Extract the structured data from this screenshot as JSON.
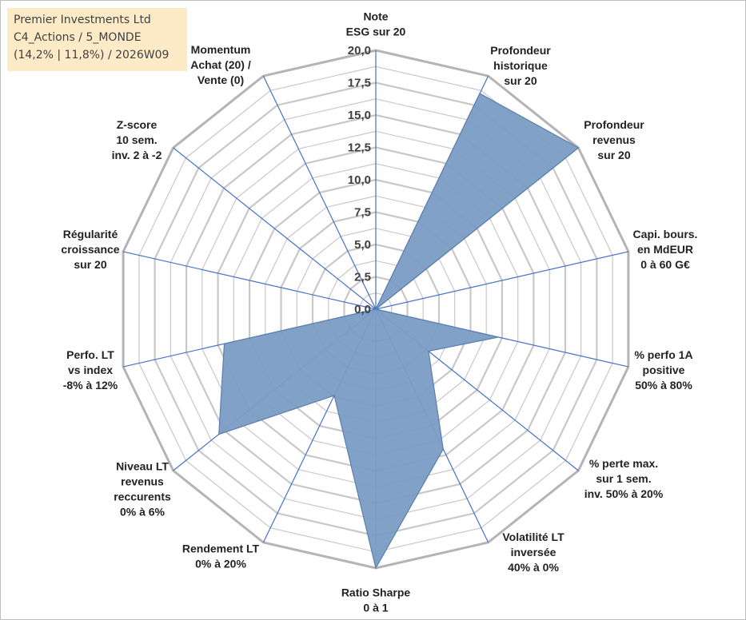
{
  "info": {
    "line1": "Premier Investments Ltd",
    "line2": "C4_Actions / 5_MONDE",
    "line3": "(14,2% | 11,8%) / 2026W09"
  },
  "colors": {
    "fill": "#7b9cc4",
    "stroke": "#5b7fae",
    "spoke": "#4472c4",
    "ring": "#c8c8c8",
    "outer_ring": "#b4b4b4"
  },
  "chart_data": {
    "type": "radar",
    "ylim": [
      0,
      20
    ],
    "tick_labels": [
      "0,0",
      "2,5",
      "5,0",
      "7,5",
      "10,0",
      "12,5",
      "15,0",
      "17,5",
      "20,0"
    ],
    "categories": [
      [
        "Note",
        "ESG sur 20"
      ],
      [
        "Profondeur",
        "historique",
        "sur 20"
      ],
      [
        "Profondeur",
        "revenus",
        "sur 20"
      ],
      [
        "Capi. bours.",
        "en MdEUR",
        "0 à 60 G€"
      ],
      [
        "% perfo 1A",
        "positive",
        "50% à 80%"
      ],
      [
        "% perte max.",
        "sur 1 sem.",
        "inv. 50% à 20%"
      ],
      [
        "Volatilité LT",
        "inversée",
        "40% à 0%"
      ],
      [
        "Ratio Sharpe",
        "0 à 1"
      ],
      [
        "Rendement LT",
        "0% à 20%"
      ],
      [
        "Niveau LT",
        "revenus",
        "reccurents",
        "0% à 6%"
      ],
      [
        "Perfo. LT",
        "vs index",
        "-8% à 12%"
      ],
      [
        "Régularité",
        "croissance",
        "sur 20"
      ],
      [
        "Z-score",
        "10 sem.",
        "inv. 2 à -2"
      ],
      [
        "Momentum",
        "Achat (20) /",
        "Vente (0)"
      ]
    ],
    "values": [
      0,
      18.5,
      20,
      0,
      9.7,
      5.2,
      12,
      20,
      7.4,
      15.5,
      12,
      0,
      0,
      0
    ]
  }
}
